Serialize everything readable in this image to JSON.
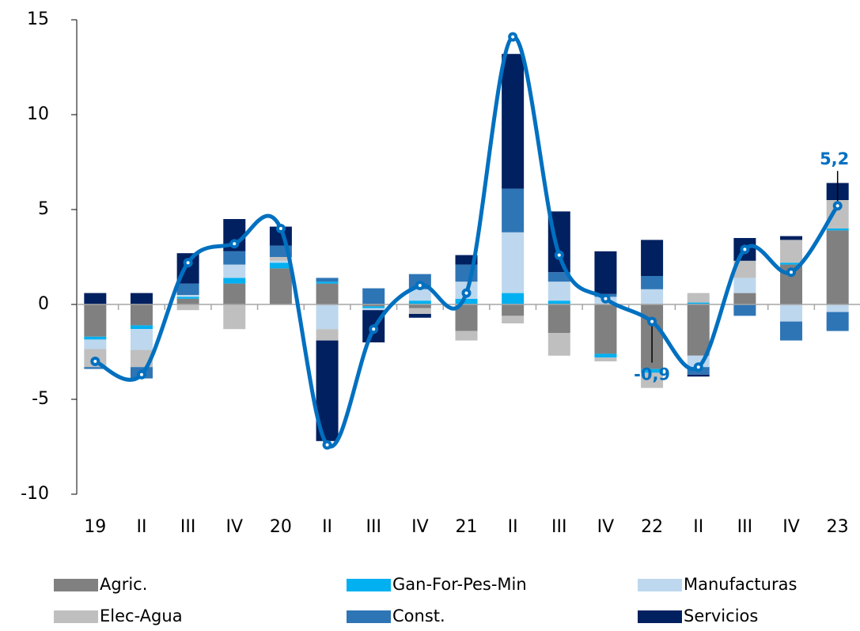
{
  "chart_data": {
    "type": "bar",
    "categories": [
      "19",
      "II",
      "III",
      "IV",
      "20",
      "II",
      "III",
      "IV",
      "21",
      "II",
      "III",
      "IV",
      "22",
      "II",
      "III",
      "IV",
      "23"
    ],
    "ylim": [
      -10,
      15
    ],
    "yticks": [
      -10,
      -5,
      0,
      5,
      10,
      15
    ],
    "stacked": true,
    "series": [
      {
        "name": "Agric.",
        "color": "#808080",
        "values": [
          -1.7,
          -1.1,
          0.3,
          1.1,
          1.9,
          1.1,
          -0.1,
          -0.2,
          -1.4,
          -0.6,
          -1.5,
          -2.6,
          -3.4,
          -2.7,
          0.6,
          2.1,
          3.9
        ]
      },
      {
        "name": "Gan-For-Pes-Min",
        "color": "#00b0f0",
        "values": [
          -0.15,
          -0.2,
          0.1,
          0.3,
          0.3,
          0.1,
          -0.1,
          0.2,
          0.3,
          0.6,
          0.2,
          -0.2,
          -0.2,
          0.1,
          0.0,
          0.1,
          0.1
        ]
      },
      {
        "name": "Manufacturas",
        "color": "#bdd7ee",
        "values": [
          -0.5,
          -1.1,
          0.1,
          0.7,
          0.1,
          -1.3,
          -0.1,
          0.6,
          0.9,
          3.2,
          1.0,
          0.4,
          0.8,
          -0.6,
          0.8,
          -0.9,
          -0.4
        ]
      },
      {
        "name": "Elec-Agua",
        "color": "#bfbfbf",
        "values": [
          -0.95,
          -0.9,
          -0.3,
          -1.3,
          0.2,
          -0.6,
          0.0,
          -0.3,
          -0.5,
          -0.4,
          -1.2,
          -0.2,
          -0.8,
          0.5,
          0.9,
          1.2,
          1.5
        ]
      },
      {
        "name": "Const.",
        "color": "#2e75b6",
        "values": [
          -0.1,
          -0.6,
          0.6,
          0.7,
          0.6,
          0.2,
          0.85,
          0.8,
          0.9,
          2.3,
          0.5,
          0.15,
          0.7,
          -0.4,
          -0.6,
          -1.0,
          -1.0
        ]
      },
      {
        "name": "Servicios",
        "color": "#002060",
        "values": [
          0.6,
          0.6,
          1.6,
          1.7,
          1.0,
          -5.3,
          -1.7,
          -0.2,
          0.5,
          7.1,
          3.2,
          2.25,
          1.9,
          -0.1,
          1.2,
          0.2,
          0.9
        ]
      }
    ],
    "line": {
      "type": "line",
      "color": "#0070c0",
      "values": [
        -3.0,
        -3.7,
        2.2,
        3.2,
        4.0,
        -7.4,
        -1.3,
        1.0,
        0.6,
        14.1,
        2.6,
        0.3,
        -0.9,
        -3.3,
        2.9,
        1.7,
        5.2
      ],
      "value_labels": [
        null,
        null,
        null,
        null,
        null,
        null,
        null,
        null,
        null,
        null,
        null,
        null,
        "-0,9",
        null,
        null,
        null,
        "5,2"
      ]
    }
  }
}
